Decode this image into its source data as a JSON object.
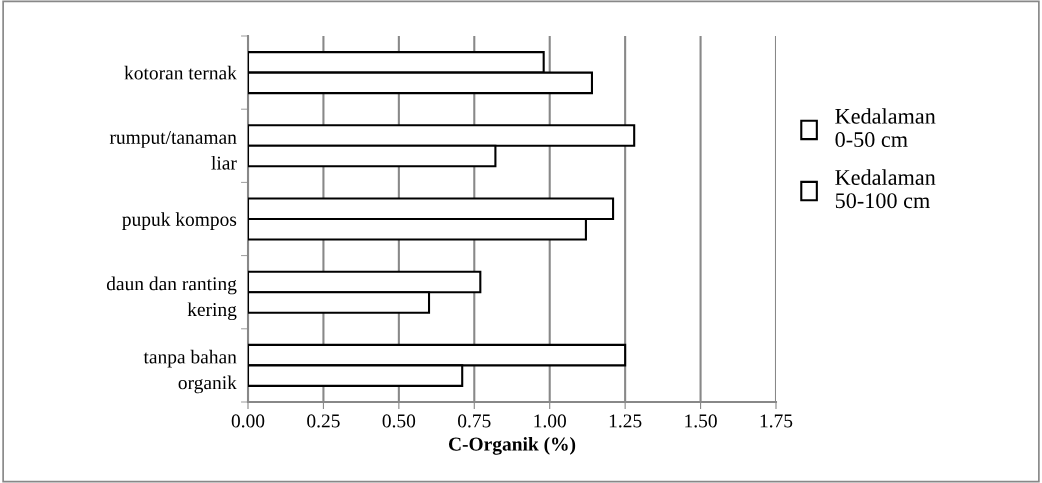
{
  "chart_data": {
    "type": "bar",
    "orientation": "horizontal",
    "xlabel": "C-Organik (%)",
    "categories": [
      "kotoran ternak",
      "rumput/tanaman\nliar",
      "pupuk kompos",
      "daun dan ranting\nkering",
      "tanpa bahan\norganik"
    ],
    "series": [
      {
        "name": "Kedalaman\n0-50 cm",
        "color": "#ffffff",
        "values": [
          0.98,
          1.28,
          1.21,
          0.77,
          1.25
        ]
      },
      {
        "name": "Kedalaman\n50-100 cm",
        "color": "#ffffff",
        "values": [
          1.14,
          0.82,
          1.12,
          0.6,
          0.71
        ]
      }
    ],
    "xlim": [
      0,
      1.75
    ],
    "xticks": [
      {
        "value": 0,
        "label": "0.00"
      },
      {
        "value": 0.25,
        "label": "0.25"
      },
      {
        "value": 0.5,
        "label": "0.50"
      },
      {
        "value": 0.75,
        "label": "0.75"
      },
      {
        "value": 1.0,
        "label": "1.00"
      },
      {
        "value": 1.25,
        "label": "1.25"
      },
      {
        "value": 1.5,
        "label": "1.50"
      },
      {
        "value": 1.75,
        "label": "1.75"
      }
    ],
    "grid": "x",
    "legend": "right"
  }
}
